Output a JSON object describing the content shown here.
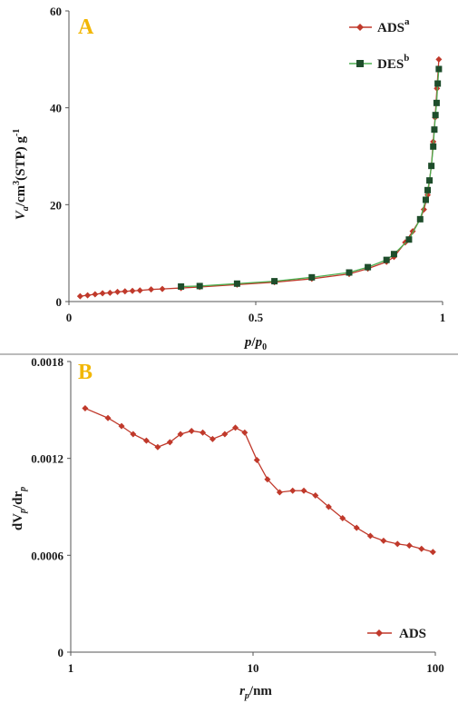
{
  "chart_data": [
    {
      "type": "line",
      "panel_label": "A",
      "xlabel_main": "p",
      "xlabel_slash": "/",
      "xlabel_p0": "p",
      "xlabel_sub0": "0",
      "ylabel_main": "V",
      "ylabel_sub": "a",
      "ylabel_unit": "/cm",
      "ylabel_sup3": "3",
      "ylabel_stp": "(STP) g",
      "ylabel_sup": "-1",
      "xlim": [
        0,
        1
      ],
      "ylim": [
        0,
        60
      ],
      "xticks": [
        "0",
        "0.5",
        "1"
      ],
      "xtick_values": [
        0,
        0.5,
        1
      ],
      "yticks": [
        "0",
        "20",
        "40",
        "60"
      ],
      "ytick_values": [
        0,
        20,
        40,
        60
      ],
      "legend_position": "top-right",
      "series": [
        {
          "name": "ADS",
          "superscript": "a",
          "color": "#c0392b",
          "line_color": "#c0392b",
          "marker": "diamond",
          "x": [
            0.03,
            0.05,
            0.07,
            0.09,
            0.11,
            0.13,
            0.15,
            0.17,
            0.19,
            0.22,
            0.25,
            0.3,
            0.35,
            0.45,
            0.55,
            0.65,
            0.75,
            0.8,
            0.85,
            0.87,
            0.9,
            0.92,
            0.94,
            0.95,
            0.96,
            0.965,
            0.97,
            0.975,
            0.98,
            0.985,
            0.99
          ],
          "y": [
            1.1,
            1.3,
            1.5,
            1.7,
            1.8,
            2.0,
            2.1,
            2.2,
            2.3,
            2.5,
            2.6,
            2.8,
            3.0,
            3.5,
            4.0,
            4.7,
            5.7,
            6.8,
            8.2,
            9.2,
            12.2,
            14.5,
            17.0,
            19.0,
            22.0,
            25.0,
            28.0,
            33.0,
            38.0,
            44.0,
            50.0
          ]
        },
        {
          "name": "DES",
          "superscript": "b",
          "color": "#1e4d2b",
          "line_color": "#4caf50",
          "marker": "square",
          "x": [
            0.3,
            0.35,
            0.45,
            0.55,
            0.65,
            0.75,
            0.8,
            0.85,
            0.87,
            0.91,
            0.94,
            0.955,
            0.96,
            0.965,
            0.97,
            0.975,
            0.978,
            0.981,
            0.984,
            0.987,
            0.99
          ],
          "y": [
            3.1,
            3.2,
            3.7,
            4.2,
            5.0,
            6.0,
            7.1,
            8.6,
            9.8,
            12.8,
            17.0,
            21.0,
            23.0,
            25.0,
            28.0,
            32.0,
            35.5,
            38.5,
            41.0,
            45.0,
            48.0
          ]
        }
      ]
    },
    {
      "type": "line",
      "panel_label": "B",
      "xscale": "log",
      "xlabel_main": "r",
      "xlabel_sub": "p",
      "xlabel_unit": "/nm",
      "ylabel_main": "dV",
      "ylabel_sub1": "p",
      "ylabel_mid": "/dr",
      "ylabel_sub2": "p",
      "xlim": [
        1,
        100
      ],
      "ylim": [
        0,
        0.0018
      ],
      "xticks": [
        "1",
        "10",
        "100"
      ],
      "xtick_values": [
        1,
        10,
        100
      ],
      "yticks": [
        "0",
        "0.0006",
        "0.0012",
        "0.0018"
      ],
      "ytick_values": [
        0,
        0.0006,
        0.0012,
        0.0018
      ],
      "legend_position": "bottom-right",
      "series": [
        {
          "name": "ADS",
          "color": "#c0392b",
          "line_color": "#c0392b",
          "marker": "diamond",
          "x": [
            1.2,
            1.6,
            1.9,
            2.2,
            2.6,
            3.0,
            3.5,
            4.0,
            4.6,
            5.3,
            6.0,
            7.0,
            8.0,
            9.0,
            10.5,
            12.0,
            14.0,
            16.5,
            19.0,
            22.0,
            26.0,
            31.0,
            37.0,
            44.0,
            52.0,
            62.0,
            72.0,
            84.0,
            97.0
          ],
          "y": [
            0.00151,
            0.00145,
            0.0014,
            0.00135,
            0.00131,
            0.00127,
            0.0013,
            0.00135,
            0.00137,
            0.00136,
            0.00132,
            0.00135,
            0.00139,
            0.00136,
            0.00119,
            0.00107,
            0.00099,
            0.001,
            0.001,
            0.00097,
            0.0009,
            0.00083,
            0.00077,
            0.00072,
            0.00069,
            0.00067,
            0.00066,
            0.00064,
            0.00062
          ]
        }
      ]
    }
  ]
}
